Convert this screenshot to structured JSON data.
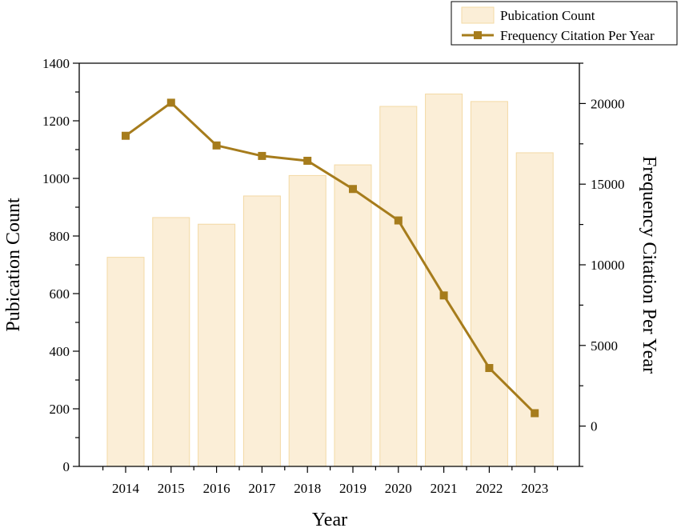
{
  "chart_data": {
    "type": "bar",
    "categories": [
      "2014",
      "2015",
      "2016",
      "2017",
      "2018",
      "2019",
      "2020",
      "2021",
      "2022",
      "2023"
    ],
    "series": [
      {
        "name": "Pubication Count",
        "type": "bar",
        "axis": "left",
        "values": [
          726,
          864,
          841,
          939,
          1010,
          1047,
          1250,
          1293,
          1267,
          1089
        ],
        "color": "#fbeed7"
      },
      {
        "name": "Frequency Citation Per Year",
        "type": "line",
        "axis": "right",
        "values": [
          18000,
          20050,
          17400,
          16750,
          16450,
          14700,
          12750,
          8100,
          3600,
          800
        ],
        "color": "#a67c1c"
      }
    ],
    "xlabel": "Year",
    "ylabel": "Pubication Count",
    "y2label": "Frequency Citation Per Year",
    "ylim": [
      0,
      1400
    ],
    "yticks": [
      "0",
      "200",
      "400",
      "600",
      "800",
      "1000",
      "1200",
      "1400"
    ],
    "y2lim": [
      -2500,
      22500
    ],
    "y2ticks": [
      "0",
      "5000",
      "10000",
      "15000",
      "20000"
    ],
    "legend": {
      "placement": "top-right",
      "entries": [
        "Pubication Count",
        "Frequency Citation Per Year"
      ]
    },
    "grid": false
  }
}
